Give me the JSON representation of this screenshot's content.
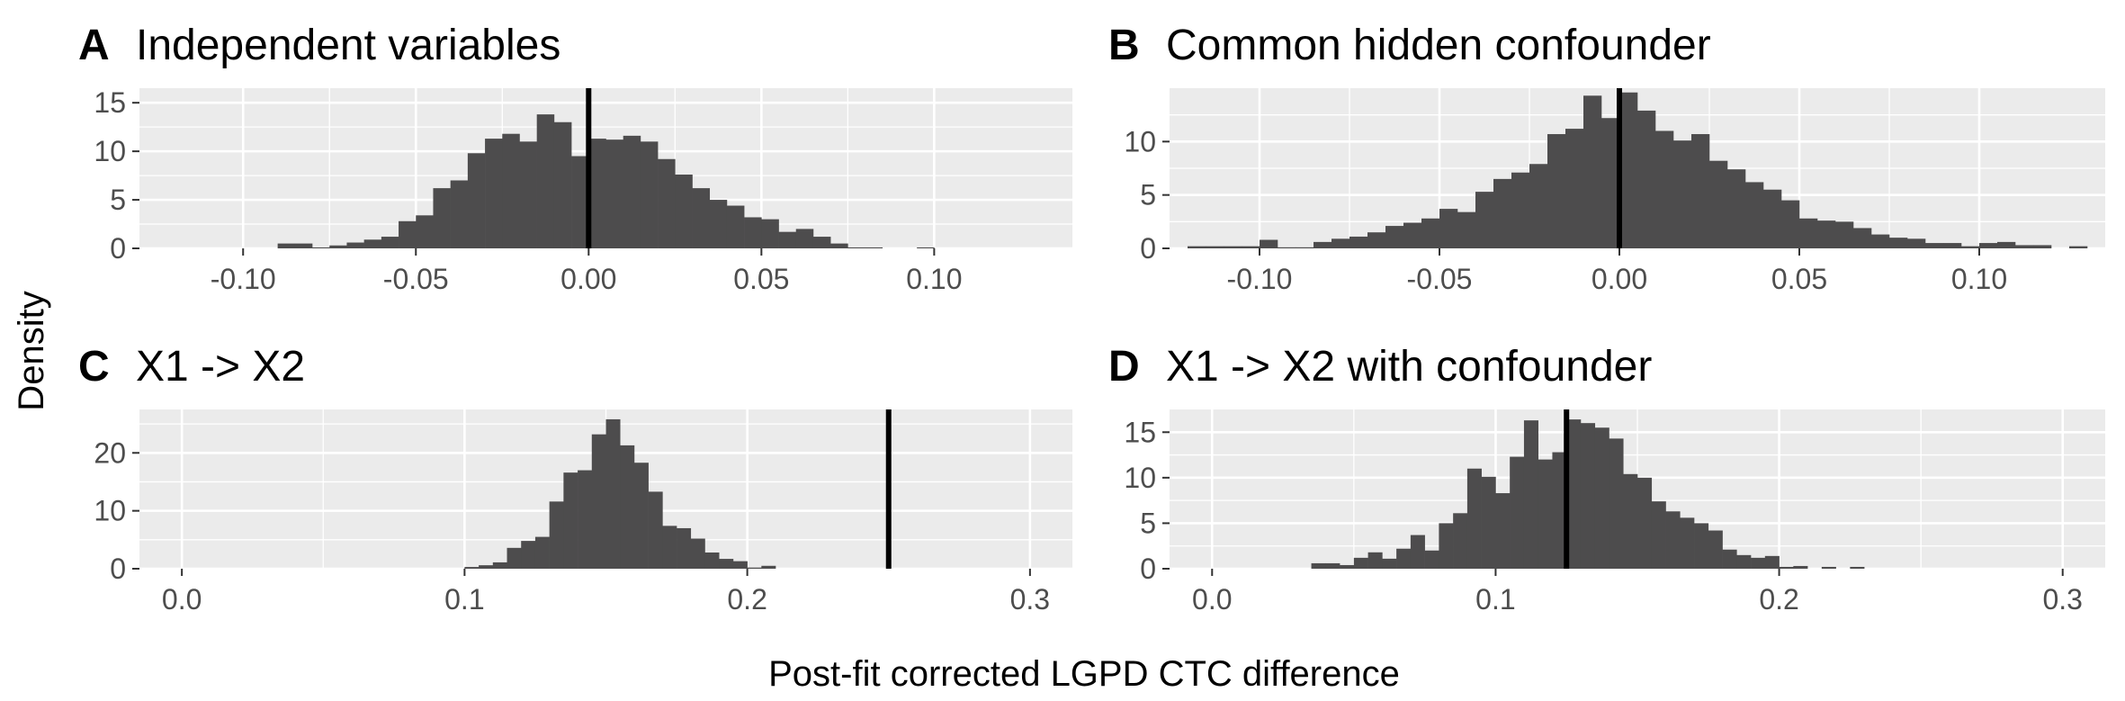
{
  "figure": {
    "ylabel": "Density",
    "xlabel": "Post-fit corrected LGPD CTC difference"
  },
  "colors": {
    "panel_bg": "#EBEBEB",
    "grid_major": "#FFFFFF",
    "bar_fill": "#4D4C4D",
    "ref_line": "#000000",
    "tick_text": "#4D4D4D",
    "title_text": "#000000"
  },
  "chart_data": [
    {
      "type": "bar",
      "panel": "A",
      "title": "Independent variables",
      "xlim": [
        -0.13,
        0.14
      ],
      "ylim": [
        0,
        16.5
      ],
      "xticks": [
        -0.1,
        -0.05,
        0.0,
        0.05,
        0.1
      ],
      "xtick_labels": [
        "-0.10",
        "-0.05",
        "0.00",
        "0.05",
        "0.10"
      ],
      "yticks": [
        0,
        5,
        10,
        15
      ],
      "ytick_labels": [
        "0",
        "5",
        "10",
        "15"
      ],
      "bin_width": 0.005,
      "bins_start": [
        -0.09,
        -0.085,
        -0.08,
        -0.075,
        -0.07,
        -0.065,
        -0.06,
        -0.055,
        -0.05,
        -0.045,
        -0.04,
        -0.035,
        -0.03,
        -0.025,
        -0.02,
        -0.015,
        -0.01,
        -0.005,
        0.0,
        0.005,
        0.01,
        0.015,
        0.02,
        0.025,
        0.03,
        0.035,
        0.04,
        0.045,
        0.05,
        0.055,
        0.06,
        0.065,
        0.07,
        0.075,
        0.08,
        0.085,
        0.09,
        0.095
      ],
      "density": [
        0.5,
        0.5,
        0.1,
        0.3,
        0.6,
        0.9,
        1.2,
        2.8,
        3.4,
        6.2,
        7.0,
        9.8,
        11.3,
        11.8,
        11.0,
        13.8,
        13.0,
        9.5,
        11.3,
        11.2,
        11.6,
        11.0,
        9.2,
        7.6,
        6.2,
        5.0,
        4.4,
        3.2,
        3.0,
        1.7,
        2.0,
        1.2,
        0.5,
        0.1,
        0.1,
        0.0,
        0.0,
        0.1
      ],
      "ref_line_x": 0.0
    },
    {
      "type": "bar",
      "panel": "B",
      "title": "Common hidden confounder",
      "xlim": [
        -0.125,
        0.135
      ],
      "ylim": [
        0,
        15.0
      ],
      "xticks": [
        -0.1,
        -0.05,
        0.0,
        0.05,
        0.1
      ],
      "xtick_labels": [
        "-0.10",
        "-0.05",
        "0.00",
        "0.05",
        "0.10"
      ],
      "yticks": [
        0,
        5,
        10
      ],
      "ytick_labels": [
        "0",
        "5",
        "10"
      ],
      "bin_width": 0.005,
      "bins_start": [
        -0.12,
        -0.115,
        -0.11,
        -0.105,
        -0.1,
        -0.095,
        -0.09,
        -0.085,
        -0.08,
        -0.075,
        -0.07,
        -0.065,
        -0.06,
        -0.055,
        -0.05,
        -0.045,
        -0.04,
        -0.035,
        -0.03,
        -0.025,
        -0.02,
        -0.015,
        -0.01,
        -0.005,
        0.0,
        0.005,
        0.01,
        0.015,
        0.02,
        0.025,
        0.03,
        0.035,
        0.04,
        0.045,
        0.05,
        0.055,
        0.06,
        0.065,
        0.07,
        0.075,
        0.08,
        0.085,
        0.09,
        0.095,
        0.1,
        0.105,
        0.11,
        0.115,
        0.12,
        0.125
      ],
      "density": [
        0.2,
        0.2,
        0.2,
        0.2,
        0.8,
        0.1,
        0.1,
        0.6,
        0.9,
        1.1,
        1.5,
        2.1,
        2.4,
        2.8,
        3.7,
        3.4,
        5.3,
        6.5,
        7.1,
        7.9,
        10.7,
        11.2,
        14.3,
        12.2,
        14.6,
        12.9,
        11.0,
        10.1,
        10.7,
        8.2,
        7.4,
        6.2,
        5.5,
        4.5,
        2.8,
        2.6,
        2.5,
        1.9,
        1.3,
        1.0,
        0.9,
        0.5,
        0.5,
        0.2,
        0.5,
        0.6,
        0.3,
        0.3,
        0.0,
        0.2
      ],
      "ref_line_x": 0.0
    },
    {
      "type": "bar",
      "panel": "C",
      "title": "X1 -> X2",
      "xlim": [
        -0.015,
        0.315
      ],
      "ylim": [
        0,
        27.5
      ],
      "xticks": [
        0.0,
        0.1,
        0.2,
        0.3
      ],
      "xtick_labels": [
        "0.0",
        "0.1",
        "0.2",
        "0.3"
      ],
      "yticks": [
        0,
        10,
        20
      ],
      "ytick_labels": [
        "0",
        "10",
        "20"
      ],
      "bin_width": 0.005,
      "bins_start": [
        0.1,
        0.105,
        0.11,
        0.115,
        0.12,
        0.125,
        0.13,
        0.135,
        0.14,
        0.145,
        0.15,
        0.155,
        0.16,
        0.165,
        0.17,
        0.175,
        0.18,
        0.185,
        0.19,
        0.195,
        0.2,
        0.205
      ],
      "density": [
        0.3,
        0.6,
        1.1,
        3.6,
        4.8,
        5.5,
        11.6,
        16.6,
        17.0,
        23.2,
        25.8,
        21.3,
        18.3,
        13.3,
        7.4,
        7.0,
        5.2,
        2.8,
        1.7,
        1.3,
        0.2,
        0.5
      ],
      "ref_line_x": 0.25
    },
    {
      "type": "bar",
      "panel": "D",
      "title": "X1 -> X2 with confounder",
      "xlim": [
        -0.015,
        0.315
      ],
      "ylim": [
        0,
        17.5
      ],
      "xticks": [
        0.0,
        0.1,
        0.2,
        0.3
      ],
      "xtick_labels": [
        "0.0",
        "0.1",
        "0.2",
        "0.3"
      ],
      "yticks": [
        0,
        5,
        10,
        15
      ],
      "ytick_labels": [
        "0",
        "5",
        "10",
        "15"
      ],
      "bin_width": 0.005,
      "bins_start": [
        0.035,
        0.04,
        0.045,
        0.05,
        0.055,
        0.06,
        0.065,
        0.07,
        0.075,
        0.08,
        0.085,
        0.09,
        0.095,
        0.1,
        0.105,
        0.11,
        0.115,
        0.12,
        0.125,
        0.13,
        0.135,
        0.14,
        0.145,
        0.15,
        0.155,
        0.16,
        0.165,
        0.17,
        0.175,
        0.18,
        0.185,
        0.19,
        0.195,
        0.2,
        0.205,
        0.21,
        0.215,
        0.22,
        0.225
      ],
      "density": [
        0.6,
        0.6,
        0.4,
        1.2,
        1.8,
        1.1,
        2.2,
        3.7,
        2.0,
        5.0,
        6.1,
        11.0,
        10.1,
        8.3,
        12.3,
        16.3,
        12.0,
        12.8,
        16.4,
        16.0,
        15.5,
        14.3,
        10.4,
        10.0,
        7.4,
        6.3,
        5.6,
        5.0,
        4.2,
        2.1,
        1.5,
        1.2,
        1.4,
        0.2,
        0.3,
        0.0,
        0.2,
        0.0,
        0.2
      ],
      "ref_line_x": 0.125
    }
  ]
}
